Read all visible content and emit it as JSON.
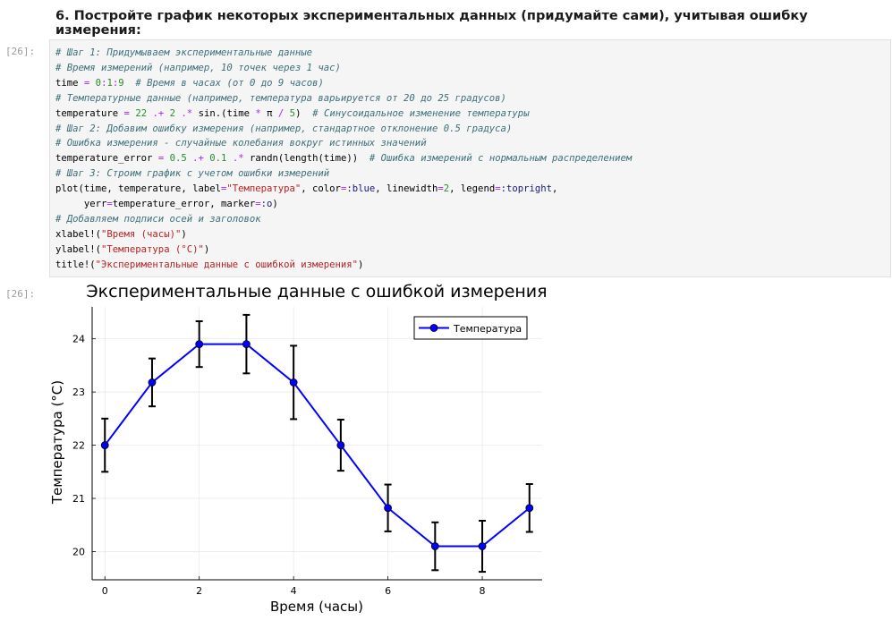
{
  "heading": "6. Постройте график некоторых экспериментальных данных (придумайте сами), учитывая ошибку измерения:",
  "input_prompt": "[26]:",
  "output_prompt": "[26]:",
  "code_lines": [
    [
      {
        "t": "# Шаг 1: Придумываем экспериментальные данные",
        "k": "c"
      }
    ],
    [
      {
        "t": "# Время измерений (например, 10 точек через 1 час)",
        "k": "c"
      }
    ],
    [
      {
        "t": "time ",
        "k": ""
      },
      {
        "t": "=",
        "k": "o"
      },
      {
        "t": " ",
        "k": ""
      },
      {
        "t": "0",
        "k": "n"
      },
      {
        "t": ":",
        "k": "o"
      },
      {
        "t": "1",
        "k": "n"
      },
      {
        "t": ":",
        "k": "o"
      },
      {
        "t": "9",
        "k": "n"
      },
      {
        "t": "  ",
        "k": ""
      },
      {
        "t": "# Время в часах (от 0 до 9 часов)",
        "k": "c"
      }
    ],
    [
      {
        "t": "# Температурные данные (например, температура варьируется от 20 до 25 градусов)",
        "k": "c"
      }
    ],
    [
      {
        "t": "temperature ",
        "k": ""
      },
      {
        "t": "=",
        "k": "o"
      },
      {
        "t": " ",
        "k": ""
      },
      {
        "t": "22",
        "k": "n"
      },
      {
        "t": " ",
        "k": ""
      },
      {
        "t": ".+",
        "k": "o"
      },
      {
        "t": " ",
        "k": ""
      },
      {
        "t": "2",
        "k": "n"
      },
      {
        "t": " ",
        "k": ""
      },
      {
        "t": ".*",
        "k": "o"
      },
      {
        "t": " sin.(time ",
        "k": ""
      },
      {
        "t": "*",
        "k": "o"
      },
      {
        "t": " π ",
        "k": ""
      },
      {
        "t": "/",
        "k": "o"
      },
      {
        "t": " ",
        "k": ""
      },
      {
        "t": "5",
        "k": "n"
      },
      {
        "t": ")  ",
        "k": ""
      },
      {
        "t": "# Синусоидальное изменение температуры",
        "k": "c"
      }
    ],
    [
      {
        "t": "# Шаг 2: Добавим ошибку измерения (например, стандартное отклонение 0.5 градуса)",
        "k": "c"
      }
    ],
    [
      {
        "t": "# Ошибка измерения - случайные колебания вокруг истинных значений",
        "k": "c"
      }
    ],
    [
      {
        "t": "temperature_error ",
        "k": ""
      },
      {
        "t": "=",
        "k": "o"
      },
      {
        "t": " ",
        "k": ""
      },
      {
        "t": "0.5",
        "k": "n"
      },
      {
        "t": " ",
        "k": ""
      },
      {
        "t": ".+",
        "k": "o"
      },
      {
        "t": " ",
        "k": ""
      },
      {
        "t": "0.1",
        "k": "n"
      },
      {
        "t": " ",
        "k": ""
      },
      {
        "t": ".*",
        "k": "o"
      },
      {
        "t": " randn(length(time))  ",
        "k": ""
      },
      {
        "t": "# Ошибка измерений с нормальным распределением",
        "k": "c"
      }
    ],
    [
      {
        "t": "# Шаг 3: Строим график с учетом ошибки измерений",
        "k": "c"
      }
    ],
    [
      {
        "t": "plot(time, temperature, label",
        "k": ""
      },
      {
        "t": "=",
        "k": "o"
      },
      {
        "t": "\"Температура\"",
        "k": "s"
      },
      {
        "t": ", color",
        "k": ""
      },
      {
        "t": "=",
        "k": "o"
      },
      {
        "t": ":blue",
        "k": "sym"
      },
      {
        "t": ", linewidth",
        "k": ""
      },
      {
        "t": "=",
        "k": "o"
      },
      {
        "t": "2",
        "k": "n"
      },
      {
        "t": ", legend",
        "k": ""
      },
      {
        "t": "=",
        "k": "o"
      },
      {
        "t": ":topright",
        "k": "sym"
      },
      {
        "t": ",",
        "k": ""
      }
    ],
    [
      {
        "t": "     yerr",
        "k": ""
      },
      {
        "t": "=",
        "k": "o"
      },
      {
        "t": "temperature_error, marker",
        "k": ""
      },
      {
        "t": "=",
        "k": "o"
      },
      {
        "t": ":o",
        "k": "sym"
      },
      {
        "t": ")",
        "k": ""
      }
    ],
    [
      {
        "t": "# Добавляем подписи осей и заголовок",
        "k": "c"
      }
    ],
    [
      {
        "t": "xlabel!(",
        "k": ""
      },
      {
        "t": "\"Время (часы)\"",
        "k": "s"
      },
      {
        "t": ")",
        "k": ""
      }
    ],
    [
      {
        "t": "ylabel!(",
        "k": ""
      },
      {
        "t": "\"Температура (°C)\"",
        "k": "s"
      },
      {
        "t": ")",
        "k": ""
      }
    ],
    [
      {
        "t": "title!(",
        "k": ""
      },
      {
        "t": "\"Экспериментальные данные с ошибкой измерения\"",
        "k": "s"
      },
      {
        "t": ")",
        "k": ""
      }
    ]
  ],
  "chart_data": {
    "type": "line",
    "title": "Экспериментальные данные с ошибкой измерения",
    "xlabel": "Время (часы)",
    "ylabel": "Температура (°C)",
    "xlim": [
      -0.27,
      9.27
    ],
    "ylim": [
      19.47,
      24.6
    ],
    "xticks": [
      0,
      2,
      4,
      6,
      8
    ],
    "yticks": [
      20,
      21,
      22,
      23,
      24
    ],
    "grid": true,
    "legend_position": "top-right",
    "series": [
      {
        "name": "Температура",
        "color": "#0000ff",
        "marker": "circle",
        "x": [
          0,
          1,
          2,
          3,
          4,
          5,
          6,
          7,
          8,
          9
        ],
        "y": [
          22.0,
          23.18,
          23.9,
          23.9,
          23.18,
          22.0,
          20.82,
          20.1,
          20.1,
          20.82
        ],
        "yerr": [
          0.5,
          0.45,
          0.43,
          0.55,
          0.69,
          0.48,
          0.44,
          0.45,
          0.48,
          0.45
        ]
      }
    ]
  }
}
